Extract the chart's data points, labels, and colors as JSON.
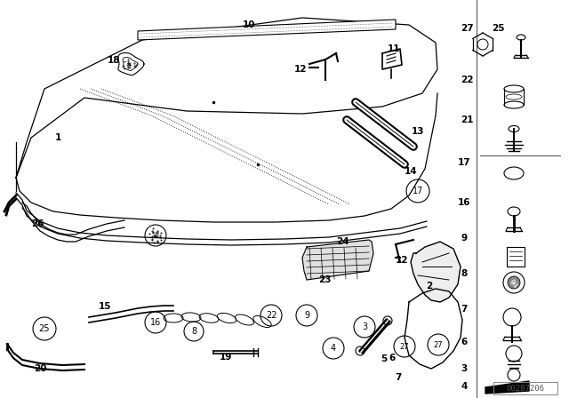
{
  "bg_color": "#ffffff",
  "line_color": "#000000",
  "watermark": "00287206",
  "fig_w": 6.4,
  "fig_h": 4.48,
  "dpi": 100
}
